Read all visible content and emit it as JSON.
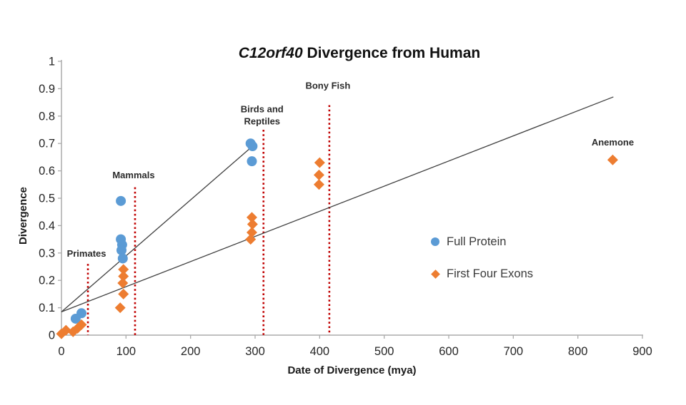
{
  "title": {
    "italic": "C12orf40",
    "rest": " Divergence from Human"
  },
  "axes": {
    "x": {
      "label": "Date of Divergence (mya)",
      "min": 0,
      "max": 900,
      "tick_step": 100,
      "ticks": [
        "0",
        "100",
        "200",
        "300",
        "400",
        "500",
        "600",
        "700",
        "800",
        "900"
      ]
    },
    "y": {
      "label": "Divergence",
      "min": 0,
      "max": 1,
      "tick_step": 0.1,
      "ticks": [
        "0",
        "0.1",
        "0.2",
        "0.3",
        "0.4",
        "0.5",
        "0.6",
        "0.7",
        "0.8",
        "0.9",
        "1"
      ]
    }
  },
  "legend": {
    "items": [
      {
        "label": "Full Protein",
        "marker": "circle",
        "color": "#5B9BD5"
      },
      {
        "label": "First Four Exons",
        "marker": "diamond",
        "color": "#ED7D31"
      }
    ]
  },
  "colors": {
    "full_protein": "#5B9BD5",
    "first_four_exons": "#ED7D31",
    "reference_line": "#C00000",
    "trend_line": "#404040",
    "axis": "#ABABAB",
    "tick_label": "#262626",
    "annotation": "#2b2b2b"
  },
  "chart_data": {
    "type": "scatter",
    "title": "C12orf40 Divergence from Human",
    "xlabel": "Date of Divergence (mya)",
    "ylabel": "Divergence",
    "xlim": [
      0,
      900
    ],
    "ylim": [
      0,
      1
    ],
    "grid": false,
    "legend_position": "center-right",
    "series": [
      {
        "name": "Full Protein",
        "marker": "circle",
        "color": "#5B9BD5",
        "points": [
          [
            22,
            0.06
          ],
          [
            31,
            0.08
          ],
          [
            92,
            0.49
          ],
          [
            92,
            0.35
          ],
          [
            94,
            0.33
          ],
          [
            93,
            0.31
          ],
          [
            95,
            0.28
          ],
          [
            293,
            0.7
          ],
          [
            296,
            0.69
          ],
          [
            295,
            0.635
          ]
        ]
      },
      {
        "name": "First Four Exons",
        "marker": "diamond",
        "color": "#ED7D31",
        "points": [
          [
            0,
            0.005
          ],
          [
            7,
            0.018
          ],
          [
            18,
            0.012
          ],
          [
            25,
            0.025
          ],
          [
            31,
            0.038
          ],
          [
            96,
            0.24
          ],
          [
            96,
            0.215
          ],
          [
            95,
            0.19
          ],
          [
            96,
            0.15
          ],
          [
            91,
            0.1
          ],
          [
            295,
            0.43
          ],
          [
            296,
            0.405
          ],
          [
            295,
            0.375
          ],
          [
            293,
            0.35
          ],
          [
            400,
            0.63
          ],
          [
            399,
            0.585
          ],
          [
            399,
            0.55
          ],
          [
            854,
            0.64
          ]
        ]
      }
    ],
    "trendlines": [
      {
        "series": "Full Protein",
        "from": [
          0,
          0.085
        ],
        "to": [
          296,
          0.69
        ]
      },
      {
        "series": "First Four Exons",
        "from": [
          0,
          0.085
        ],
        "to": [
          855,
          0.87
        ]
      }
    ],
    "reference_lines": [
      {
        "label_lines": [
          "Primates"
        ],
        "x": 41,
        "y_top": 0.26,
        "label_y": 0.287
      },
      {
        "label_lines": [
          "Mammals"
        ],
        "x": 114,
        "y_top": 0.54,
        "label_y": 0.573
      },
      {
        "label_lines": [
          "Birds and",
          "Reptiles"
        ],
        "x": 313,
        "y_top": 0.75,
        "label_y": 0.77
      },
      {
        "label_lines": [
          "Bony Fish"
        ],
        "x": 415,
        "y_top": 0.84,
        "label_y": 0.9
      }
    ],
    "annotations": [
      {
        "text": "Anemone",
        "x": 854,
        "y": 0.693
      }
    ]
  }
}
